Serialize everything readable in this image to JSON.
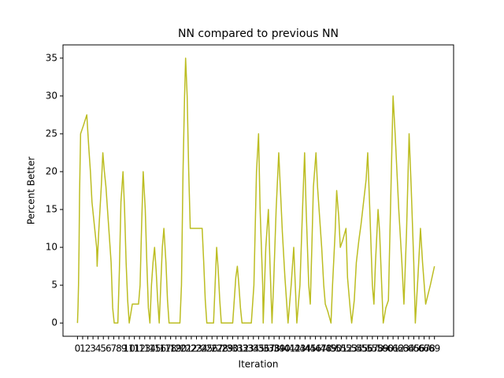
{
  "chart_data": {
    "type": "line",
    "title": "NN compared to previous NN",
    "x_label": "Iteration",
    "y_label": "Percent Better",
    "series": [
      {
        "color": "#bcbd22",
        "x": [
          0,
          0.1,
          0.2,
          0.3,
          0.4,
          0.6,
          1.1,
          1.8,
          2.2,
          2.5,
          2.8,
          3.1,
          3.4,
          3.7,
          3.8,
          4.1,
          4.6,
          4.9,
          5.2,
          5.5,
          5.8,
          6.1,
          6.5,
          6.8,
          7.1,
          7.8,
          8.1,
          8.4,
          8.8,
          9.1,
          9.4,
          9.7,
          10.0,
          10.6,
          11.8,
          12.1,
          12.4,
          12.7,
          13.1,
          13.4,
          13.7,
          14.0,
          14.3,
          14.6,
          14.9,
          15.2,
          15.5,
          15.8,
          16.1,
          16.4,
          16.7,
          17.1,
          17.4,
          17.7,
          18.3,
          19.8,
          20.1,
          20.4,
          20.7,
          20.9,
          21.2,
          21.5,
          21.8,
          22.3,
          24.1,
          24.4,
          24.7,
          25.0,
          26.3,
          26.6,
          26.9,
          27.2,
          27.5,
          27.8,
          28.7,
          30.0,
          30.3,
          30.6,
          30.9,
          31.2,
          31.5,
          31.8,
          33.0,
          33.6,
          34.1,
          34.6,
          35.0,
          35.3,
          35.8,
          35.9,
          36.4,
          36.9,
          37.2,
          37.6,
          37.9,
          38.4,
          38.9,
          39.2,
          39.6,
          40.1,
          40.4,
          40.7,
          41.3,
          41.8,
          42.1,
          42.4,
          43.0,
          43.5,
          43.9,
          44.2,
          44.7,
          45.0,
          45.3,
          45.6,
          46.1,
          46.4,
          46.7,
          47.2,
          47.6,
          47.9,
          48.4,
          49.0,
          49.3,
          49.8,
          50.1,
          50.5,
          50.8,
          51.3,
          51.9,
          52.2,
          52.7,
          53.0,
          53.5,
          53.9,
          54.4,
          54.8,
          55.3,
          55.8,
          56.1,
          56.5,
          57.0,
          57.3,
          57.6,
          58.1,
          58.4,
          58.8,
          59.1,
          59.6,
          60.1,
          60.5,
          61.0,
          61.4,
          62.1,
          62.7,
          63.1,
          63.6,
          64.1,
          64.5,
          65.0,
          65.3,
          65.8,
          66.3,
          66.7,
          67.3,
          68.2,
          69.0
        ],
        "values": [
          0,
          2,
          5,
          10,
          17,
          25,
          26,
          27.5,
          23,
          20,
          16,
          14,
          12,
          10,
          7.5,
          12,
          18,
          22.5,
          20,
          18,
          15,
          12,
          8,
          2,
          0,
          0,
          7,
          16,
          20,
          15,
          8,
          3,
          0,
          2.5,
          2.5,
          5,
          13,
          20,
          15,
          8,
          2,
          0,
          5,
          8,
          10,
          7,
          3,
          0,
          5,
          10,
          12.5,
          8,
          3,
          0,
          0,
          0,
          5,
          20,
          30,
          35,
          30,
          20,
          12.5,
          12.5,
          12.5,
          8,
          3,
          0,
          0,
          5,
          10,
          7,
          3,
          0,
          0,
          0,
          3,
          6,
          7.5,
          5,
          2,
          0,
          0,
          0,
          5,
          20,
          25,
          15,
          5,
          0,
          10,
          15,
          8,
          0,
          5,
          15,
          22.5,
          18,
          12,
          6,
          3,
          0,
          5,
          10,
          5,
          0,
          5,
          15,
          22.5,
          15,
          5,
          2.5,
          10,
          18,
          22.5,
          18,
          15,
          10,
          5,
          2.5,
          1.5,
          0,
          5,
          12,
          17.5,
          14,
          10,
          11,
          12.5,
          6,
          2,
          0,
          3,
          8,
          11,
          13,
          16,
          19,
          22.5,
          15,
          5,
          2.5,
          8,
          15,
          12,
          5,
          0,
          2,
          3,
          15,
          30,
          25,
          15,
          8,
          2.5,
          12,
          25,
          18,
          8,
          0,
          6,
          12.5,
          8,
          2.5,
          5,
          7.5
        ]
      }
    ],
    "xlim": [
      -2.8,
      72.7
    ],
    "ylim": [
      -1.75,
      36.75
    ],
    "xticks": [
      0,
      1,
      2,
      3,
      4,
      5,
      6,
      7,
      8,
      9,
      10,
      11,
      12,
      13,
      14,
      15,
      16,
      17,
      18,
      19,
      20,
      21,
      22,
      23,
      24,
      25,
      26,
      27,
      28,
      29,
      30,
      31,
      32,
      33,
      34,
      35,
      36,
      37,
      38,
      39,
      40,
      41,
      42,
      43,
      44,
      45,
      46,
      47,
      48,
      49,
      50,
      51,
      52,
      53,
      54,
      55,
      56,
      57,
      58,
      59,
      60,
      61,
      62,
      63,
      64,
      65,
      66,
      67,
      68,
      69
    ],
    "yticks": [
      0,
      5,
      10,
      15,
      20,
      25,
      30,
      35
    ]
  }
}
